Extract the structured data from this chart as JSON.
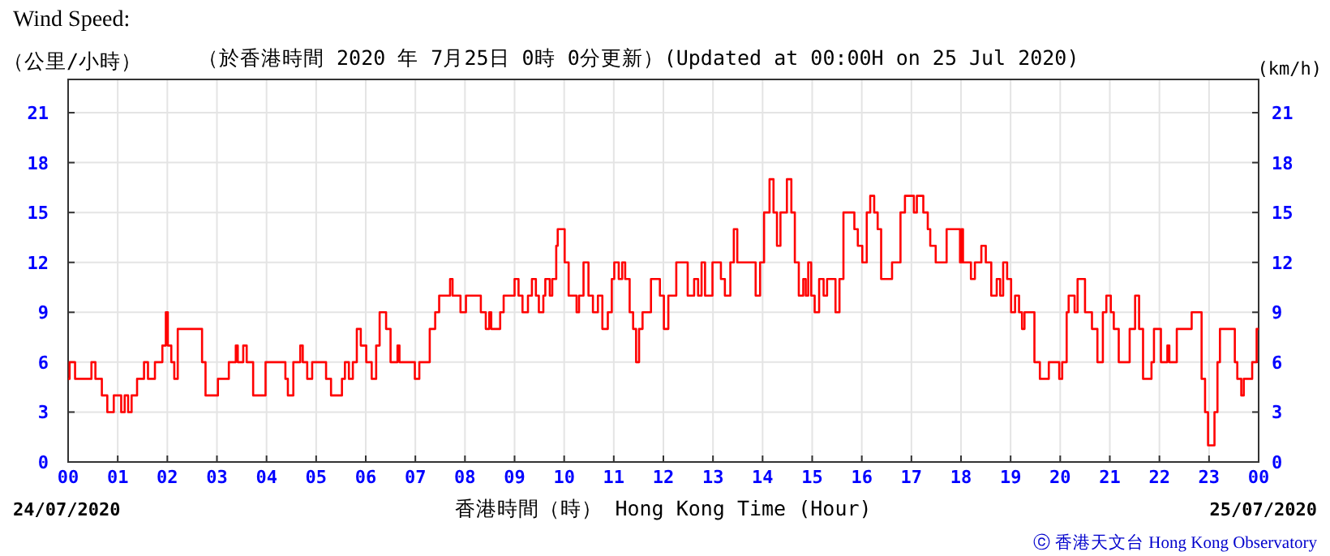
{
  "chart_data": {
    "type": "step",
    "title": "Wind Speed:",
    "subtitle": "（於香港時間 2020 年 7月25日 0時 0分更新）(Updated at 00:00H on 25 Jul 2020)",
    "xlabel": "香港時間（時） Hong Kong Time (Hour)",
    "ylabel": "（公里/小時）",
    "y2label": "(km/h)",
    "annotations": [
      "24/07/2020",
      "25/07/2020",
      "ⓒ 香港天文台 Hong Kong Observatory"
    ],
    "xlim": [
      0,
      24
    ],
    "ylim": [
      0,
      23
    ],
    "y2lim": [
      0,
      23
    ],
    "xticks": [
      {
        "value": 0,
        "label": "00"
      },
      {
        "value": 1,
        "label": "01"
      },
      {
        "value": 2,
        "label": "02"
      },
      {
        "value": 3,
        "label": "03"
      },
      {
        "value": 4,
        "label": "04"
      },
      {
        "value": 5,
        "label": "05"
      },
      {
        "value": 6,
        "label": "06"
      },
      {
        "value": 7,
        "label": "07"
      },
      {
        "value": 8,
        "label": "08"
      },
      {
        "value": 9,
        "label": "09"
      },
      {
        "value": 10,
        "label": "10"
      },
      {
        "value": 11,
        "label": "11"
      },
      {
        "value": 12,
        "label": "12"
      },
      {
        "value": 13,
        "label": "13"
      },
      {
        "value": 14,
        "label": "14"
      },
      {
        "value": 15,
        "label": "15"
      },
      {
        "value": 16,
        "label": "16"
      },
      {
        "value": 17,
        "label": "17"
      },
      {
        "value": 18,
        "label": "18"
      },
      {
        "value": 19,
        "label": "19"
      },
      {
        "value": 20,
        "label": "20"
      },
      {
        "value": 21,
        "label": "21"
      },
      {
        "value": 22,
        "label": "22"
      },
      {
        "value": 23,
        "label": "23"
      },
      {
        "value": 24,
        "label": "00"
      }
    ],
    "yticks": [
      0,
      3,
      6,
      9,
      12,
      15,
      18,
      21
    ],
    "y2ticks": [
      0,
      3,
      6,
      9,
      12,
      15,
      18,
      21
    ],
    "grid": true,
    "x": [
      0,
      0.03,
      0.14,
      0.47,
      0.55,
      0.68,
      0.79,
      0.92,
      1.07,
      1.14,
      1.21,
      1.28,
      1.39,
      1.53,
      1.61,
      1.75,
      1.9,
      1.97,
      2.01,
      2.08,
      2.14,
      2.21,
      2.4,
      2.64,
      2.7,
      2.77,
      3.02,
      3.24,
      3.38,
      3.42,
      3.53,
      3.6,
      3.73,
      3.98,
      4.38,
      4.43,
      4.54,
      4.68,
      4.73,
      4.82,
      4.92,
      5.2,
      5.3,
      5.52,
      5.58,
      5.66,
      5.74,
      5.82,
      5.9,
      6.01,
      6.12,
      6.21,
      6.28,
      6.41,
      6.5,
      6.64,
      6.68,
      6.99,
      7.08,
      7.29,
      7.4,
      7.48,
      7.7,
      7.75,
      7.91,
      8.02,
      8.32,
      8.42,
      8.49,
      8.53,
      8.71,
      8.78,
      9.0,
      9.08,
      9.16,
      9.27,
      9.35,
      9.43,
      9.49,
      9.58,
      9.62,
      9.71,
      9.76,
      9.84,
      9.87,
      10.01,
      10.09,
      10.25,
      10.3,
      10.39,
      10.49,
      10.58,
      10.68,
      10.77,
      10.88,
      10.96,
      11.01,
      11.1,
      11.17,
      11.23,
      11.32,
      11.39,
      11.45,
      11.51,
      11.58,
      11.75,
      11.86,
      11.93,
      12.01,
      12.1,
      12.26,
      12.49,
      12.62,
      12.7,
      12.77,
      12.84,
      12.99,
      13.16,
      13.24,
      13.35,
      13.42,
      13.49,
      13.78,
      13.86,
      13.95,
      14.03,
      14.14,
      14.22,
      14.29,
      14.36,
      14.49,
      14.58,
      14.65,
      14.73,
      14.82,
      14.87,
      14.92,
      14.98,
      15.05,
      15.14,
      15.23,
      15.3,
      15.47,
      15.55,
      15.63,
      15.77,
      15.85,
      15.92,
      16.01,
      16.1,
      16.17,
      16.25,
      16.32,
      16.39,
      16.61,
      16.78,
      16.87,
      17.05,
      17.11,
      17.24,
      17.33,
      17.38,
      17.49,
      17.71,
      17.98,
      18.01,
      18.04,
      18.2,
      18.28,
      18.41,
      18.5,
      18.61,
      18.72,
      18.79,
      18.85,
      18.93,
      19.01,
      19.09,
      19.17,
      19.23,
      19.28,
      19.48,
      19.59,
      19.77,
      19.98,
      20.04,
      20.13,
      20.17,
      20.29,
      20.35,
      20.5,
      20.64,
      20.75,
      20.86,
      20.93,
      21.02,
      21.08,
      21.18,
      21.4,
      21.51,
      21.59,
      21.67,
      21.84,
      21.89,
      22.03,
      22.16,
      22.2,
      22.35,
      22.65,
      22.85,
      22.92,
      22.98,
      23.11,
      23.17,
      23.22,
      23.52,
      23.57,
      23.65,
      23.7,
      23.87,
      23.96,
      24
    ],
    "series": [
      {
        "color": "#ff0000",
        "values": [
          5,
          6,
          5,
          6,
          5,
          4,
          3,
          4,
          3,
          4,
          3,
          4,
          5,
          6,
          5,
          6,
          7,
          9,
          7,
          6,
          5,
          8,
          8,
          8,
          6,
          4,
          5,
          6,
          7,
          6,
          7,
          6,
          4,
          6,
          5,
          4,
          6,
          7,
          6,
          5,
          6,
          5,
          4,
          5,
          6,
          5,
          6,
          8,
          7,
          6,
          5,
          7,
          9,
          8,
          6,
          7,
          6,
          5,
          6,
          8,
          9,
          10,
          11,
          10,
          9,
          10,
          9,
          8,
          9,
          8,
          9,
          10,
          11,
          10,
          9,
          10,
          11,
          10,
          9,
          10,
          11,
          10,
          11,
          13,
          14,
          12,
          10,
          9,
          10,
          12,
          10,
          9,
          10,
          8,
          9,
          11,
          12,
          11,
          12,
          11,
          9,
          8,
          6,
          8,
          9,
          11,
          11,
          10,
          8,
          10,
          12,
          10,
          11,
          10,
          12,
          10,
          12,
          11,
          10,
          12,
          14,
          12,
          12,
          10,
          12,
          15,
          17,
          15,
          13,
          15,
          17,
          15,
          12,
          10,
          11,
          10,
          12,
          10,
          9,
          11,
          10,
          11,
          9,
          11,
          15,
          15,
          14,
          13,
          12,
          15,
          16,
          15,
          14,
          11,
          12,
          15,
          16,
          15,
          16,
          15,
          14,
          13,
          12,
          14,
          12,
          14,
          12,
          11,
          12,
          13,
          12,
          10,
          11,
          10,
          12,
          11,
          9,
          10,
          9,
          8,
          9,
          6,
          5,
          6,
          5,
          6,
          9,
          10,
          9,
          11,
          9,
          8,
          6,
          9,
          10,
          9,
          8,
          6,
          8,
          10,
          8,
          5,
          6,
          8,
          6,
          7,
          6,
          8,
          9,
          5,
          3,
          1,
          3,
          6,
          8,
          6,
          5,
          4,
          5,
          6,
          8,
          8
        ]
      }
    ]
  }
}
